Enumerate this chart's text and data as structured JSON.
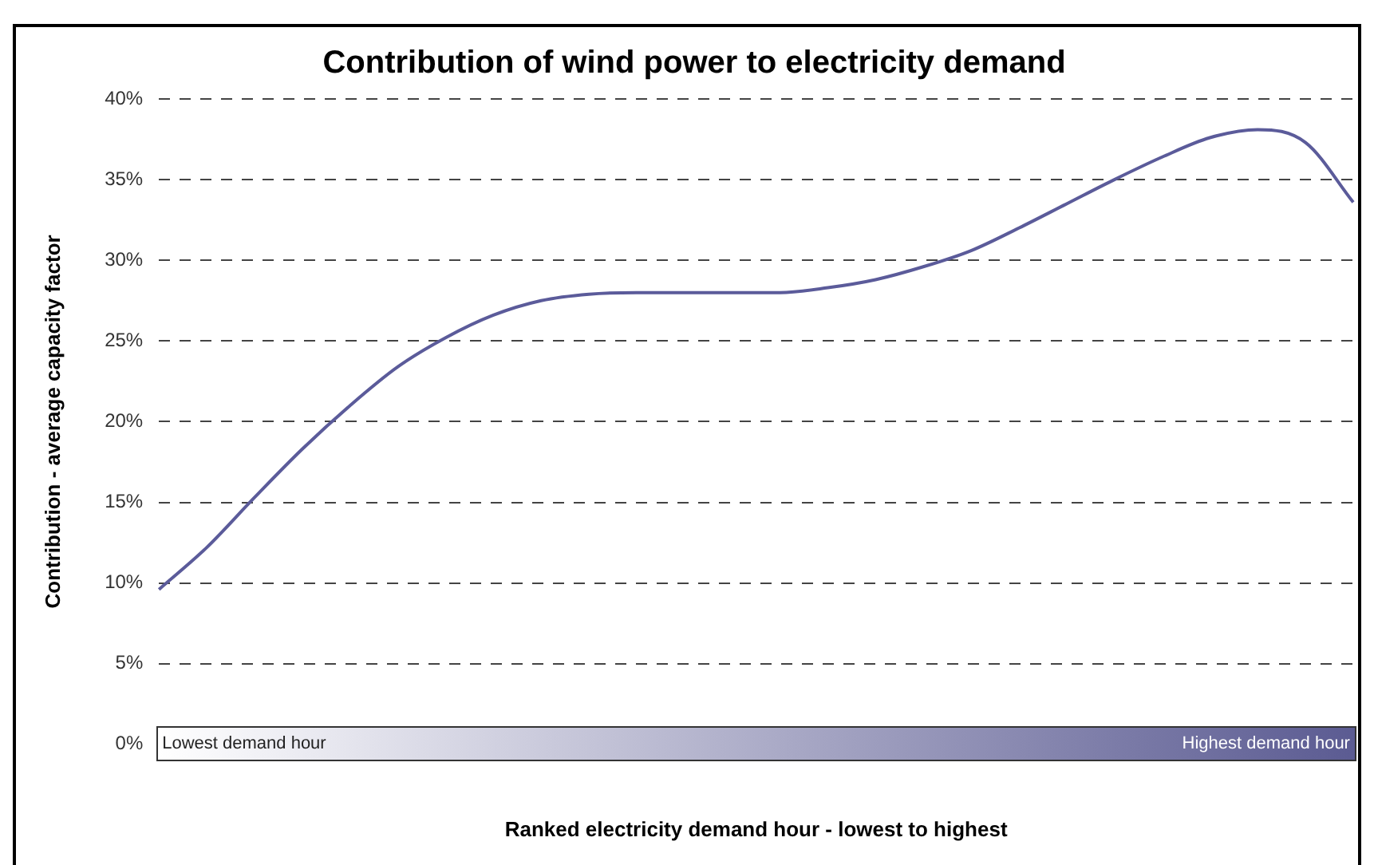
{
  "chart_data": {
    "type": "line",
    "title": "Contribution of wind power to electricity demand",
    "xlabel": "Ranked electricity demand hour - lowest to highest",
    "ylabel": "Contribution - average capacity factor",
    "categories": [
      null,
      null,
      null,
      null,
      null,
      null,
      null,
      null,
      null,
      null,
      null,
      null,
      null,
      null,
      null,
      null,
      null,
      null,
      null,
      null,
      null,
      null,
      null,
      null,
      null,
      null
    ],
    "series": [
      {
        "color": "#5b5b9a",
        "values": [
          9.6,
          12.2,
          15.3,
          18.3,
          21.0,
          23.4,
          25.2,
          26.6,
          27.5,
          27.9,
          28.0,
          28.0,
          28.0,
          28.0,
          28.3,
          28.8,
          29.6,
          30.6,
          32.0,
          33.5,
          35.0,
          36.4,
          37.6,
          38.1,
          37.3,
          33.6
        ]
      }
    ],
    "ylim": [
      0,
      40
    ],
    "yticks": [
      {
        "value": 0,
        "label": "0%"
      },
      {
        "value": 5,
        "label": "5%"
      },
      {
        "value": 10,
        "label": "10%"
      },
      {
        "value": 15,
        "label": "15%"
      },
      {
        "value": 20,
        "label": "20%"
      },
      {
        "value": 25,
        "label": "25%"
      },
      {
        "value": 30,
        "label": "30%"
      },
      {
        "value": 35,
        "label": "35%"
      },
      {
        "value": 40,
        "label": "40%"
      }
    ],
    "grid": "y",
    "legend": false,
    "marker": "none",
    "line_style": "solid",
    "annotations": [
      "Lowest demand hour",
      "Highest demand hour"
    ]
  }
}
